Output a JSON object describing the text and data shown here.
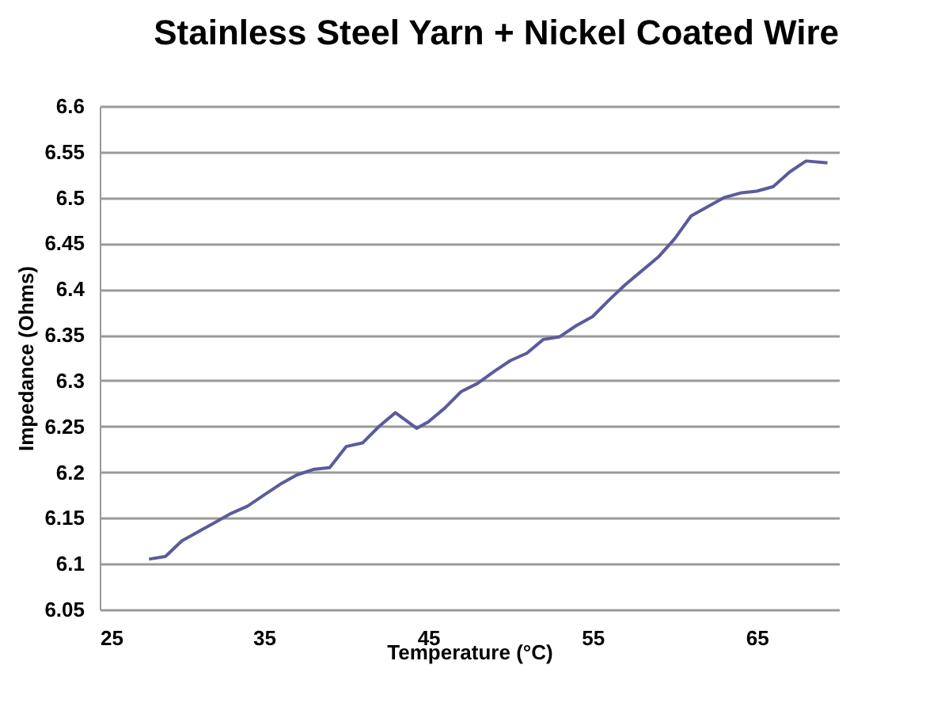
{
  "chart_data": {
    "type": "line",
    "title": "Stainless Steel Yarn + Nickel Coated Wire",
    "xlabel": "Temperature (°C)",
    "ylabel": "Impedance (Ohms)",
    "x": [
      28,
      29,
      30,
      31,
      32,
      33,
      34,
      35,
      36,
      37,
      38,
      39,
      40,
      41,
      42,
      43,
      44.3,
      45,
      46,
      47,
      48,
      49,
      50,
      51,
      52,
      53,
      54,
      55,
      56,
      57,
      58,
      59,
      60,
      61,
      62,
      63,
      64,
      65,
      66,
      67,
      68,
      69.3
    ],
    "series": [
      {
        "color": "#5b5b9b",
        "values": [
          6.105,
          6.108,
          6.125,
          6.135,
          6.145,
          6.155,
          6.163,
          6.175,
          6.187,
          6.197,
          6.203,
          6.205,
          6.228,
          6.232,
          6.25,
          6.265,
          6.248,
          6.255,
          6.27,
          6.288,
          6.297,
          6.31,
          6.322,
          6.33,
          6.345,
          6.348,
          6.36,
          6.37,
          6.388,
          6.405,
          6.42,
          6.435,
          6.455,
          6.48,
          6.49,
          6.5,
          6.505,
          6.507,
          6.512,
          6.528,
          6.54,
          6.538
        ]
      }
    ],
    "xlim": [
      25,
      70
    ],
    "xticks": [
      25,
      35,
      45,
      55,
      65
    ],
    "ylim": [
      6.05,
      6.6
    ],
    "yticks": [
      6.05,
      6.1,
      6.15,
      6.2,
      6.25,
      6.3,
      6.35,
      6.4,
      6.45,
      6.5,
      6.55,
      6.6
    ],
    "grid": "y",
    "legend": false,
    "marker": "none",
    "line_style": "solid"
  }
}
